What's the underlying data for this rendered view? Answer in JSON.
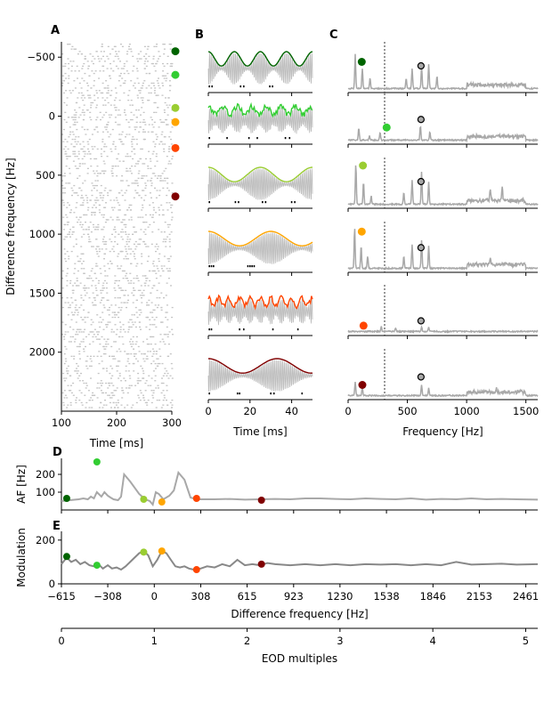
{
  "colors": {
    "series": [
      "#006400",
      "#32cd32",
      "#9acd32",
      "#ffa500",
      "#ff4500",
      "#800000"
    ],
    "grey": "#a8a8a8",
    "dark_grey": "#888888",
    "raster": "#c4c4c4"
  },
  "chart_data": [
    {
      "panel": "A",
      "type": "scatter",
      "title": "",
      "xlabel": "Time [ms]",
      "ylabel": "Difference frequency [Hz]",
      "xlim": [
        100,
        300
      ],
      "ylim": [
        2500,
        -630
      ],
      "x_ticks": [
        100,
        200,
        300
      ],
      "y_ticks": [
        -500,
        0,
        500,
        1000,
        1500,
        2000
      ],
      "y_tick_labels": [
        "−500",
        "0",
        "500",
        "1000",
        "1500",
        "2000"
      ],
      "description_markers": "colored markers at right edge",
      "markers_y": [
        -550,
        -350,
        -70,
        50,
        270,
        680
      ],
      "markers_x": 302
    },
    {
      "panel": "B",
      "type": "line",
      "title": "",
      "xlabel": "Time [ms]",
      "xlim": [
        0,
        50
      ],
      "x_ticks": [
        0,
        20,
        40
      ],
      "rows": 6,
      "envelope_periods_ms": [
        12.5,
        7,
        25,
        30,
        5,
        33
      ],
      "envelope_shapes": [
        "smooth",
        "jagged",
        "smooth",
        "smooth",
        "jagged",
        "smooth"
      ],
      "spike_times_ms": [
        [
          0.5,
          1.8,
          15.5,
          17.0,
          29.5,
          30.8
        ],
        [
          0.5,
          9.0,
          19.5,
          23.5,
          37.0,
          39.0
        ],
        [
          0.5,
          13.0,
          14.5,
          26.0,
          27.5,
          40.0,
          41.5
        ],
        [
          0.5,
          1.5,
          2.5,
          19.0,
          20.0,
          21.0,
          22.0
        ],
        [
          0.5,
          1.5,
          15.0,
          17.0,
          31.0,
          43.0
        ],
        [
          0.5,
          14.0,
          15.0,
          30.0,
          31.5,
          45.0
        ]
      ]
    },
    {
      "panel": "C",
      "type": "line",
      "title": "",
      "xlabel": "Frequency [Hz]",
      "xlim": [
        0,
        1600
      ],
      "x_ticks": [
        0,
        500,
        1000,
        1500
      ],
      "reference_line_x": 308,
      "eod_marker_x": 615,
      "eod_marker_level": [
        0.6,
        0.55,
        0.6,
        0.55,
        0.3,
        0.5
      ],
      "df_marker_x": [
        55,
        265,
        65,
        55,
        70,
        60
      ],
      "df_marker_level": [
        0.7,
        0.35,
        1.0,
        0.95,
        0.18,
        0.3
      ],
      "peaks": [
        [
          [
            60,
            0.85
          ],
          [
            120,
            0.5
          ],
          [
            185,
            0.25
          ],
          [
            490,
            0.25
          ],
          [
            540,
            0.5
          ],
          [
            620,
            0.55
          ],
          [
            680,
            0.6
          ],
          [
            750,
            0.3
          ]
        ],
        [
          [
            90,
            0.3
          ],
          [
            180,
            0.1
          ],
          [
            270,
            0.2
          ],
          [
            610,
            0.35
          ],
          [
            690,
            0.2
          ]
        ],
        [
          [
            65,
            1.0
          ],
          [
            130,
            0.55
          ],
          [
            195,
            0.2
          ],
          [
            470,
            0.3
          ],
          [
            540,
            0.6
          ],
          [
            620,
            0.8
          ],
          [
            680,
            0.55
          ],
          [
            1200,
            0.3
          ],
          [
            1300,
            0.35
          ]
        ],
        [
          [
            55,
            1.0
          ],
          [
            110,
            0.55
          ],
          [
            165,
            0.3
          ],
          [
            470,
            0.3
          ],
          [
            540,
            0.6
          ],
          [
            620,
            0.7
          ],
          [
            680,
            0.55
          ],
          [
            1200,
            0.2
          ]
        ],
        [
          [
            280,
            0.12
          ],
          [
            400,
            0.08
          ],
          [
            620,
            0.12
          ],
          [
            680,
            0.1
          ]
        ],
        [
          [
            60,
            0.35
          ],
          [
            120,
            0.2
          ],
          [
            620,
            0.25
          ],
          [
            680,
            0.18
          ],
          [
            1250,
            0.1
          ]
        ]
      ]
    },
    {
      "panel": "D",
      "type": "line",
      "title": "",
      "ylabel": "AF [Hz]",
      "xlim": [
        -615,
        2540
      ],
      "ylim": [
        0,
        290
      ],
      "y_ticks": [
        100,
        200
      ],
      "x": [
        -615,
        -560,
        -500,
        -470,
        -440,
        -420,
        -400,
        -380,
        -350,
        -330,
        -308,
        -290,
        -270,
        -240,
        -220,
        -200,
        -160,
        -100,
        -60,
        -30,
        -10,
        10,
        30,
        60,
        100,
        130,
        160,
        200,
        240,
        280,
        308,
        400,
        500,
        600,
        700,
        800,
        900,
        1000,
        1100,
        1200,
        1300,
        1400,
        1500,
        1600,
        1700,
        1800,
        1900,
        2000,
        2100,
        2200,
        2300,
        2400,
        2540
      ],
      "y": [
        50,
        55,
        60,
        65,
        60,
        75,
        65,
        100,
        75,
        100,
        80,
        70,
        60,
        55,
        75,
        200,
        160,
        90,
        60,
        50,
        30,
        100,
        90,
        60,
        80,
        110,
        210,
        170,
        70,
        60,
        60,
        60,
        62,
        58,
        60,
        62,
        60,
        65,
        65,
        62,
        60,
        65,
        62,
        60,
        65,
        58,
        62,
        60,
        65,
        60,
        62,
        60,
        58
      ],
      "markers_x": [
        -580,
        -380,
        -70,
        50,
        280,
        710
      ],
      "markers_y": [
        65,
        270,
        60,
        45,
        65,
        55
      ]
    },
    {
      "panel": "E",
      "type": "line",
      "title": "",
      "ylabel": "Modulation",
      "xlabel": "Difference frequency [Hz]",
      "xlim": [
        -615,
        2540
      ],
      "ylim": [
        0,
        240
      ],
      "y_ticks": [
        0,
        200
      ],
      "x_ticks": [
        -615,
        -308,
        0,
        308,
        615,
        923,
        1230,
        1538,
        1846,
        2153,
        2461
      ],
      "x_tick_labels": [
        "−615",
        "−308",
        "0",
        "308",
        "615",
        "923",
        "1230",
        "1538",
        "1846",
        "2153",
        "2461"
      ],
      "x": [
        -615,
        -580,
        -550,
        -520,
        -490,
        -460,
        -430,
        -400,
        -370,
        -340,
        -308,
        -280,
        -250,
        -220,
        -190,
        -160,
        -130,
        -100,
        -70,
        -40,
        -10,
        20,
        50,
        80,
        110,
        140,
        170,
        200,
        230,
        260,
        308,
        350,
        400,
        450,
        500,
        550,
        600,
        650,
        700,
        750,
        800,
        900,
        1000,
        1100,
        1200,
        1300,
        1400,
        1500,
        1600,
        1700,
        1800,
        1900,
        2000,
        2100,
        2200,
        2300,
        2400,
        2540
      ],
      "y": [
        90,
        120,
        100,
        110,
        90,
        100,
        85,
        80,
        90,
        70,
        85,
        70,
        75,
        65,
        80,
        100,
        120,
        140,
        150,
        130,
        80,
        110,
        150,
        140,
        110,
        80,
        75,
        80,
        70,
        65,
        70,
        80,
        75,
        90,
        80,
        110,
        85,
        90,
        85,
        95,
        90,
        85,
        90,
        85,
        90,
        85,
        90,
        88,
        90,
        85,
        90,
        85,
        100,
        88,
        90,
        92,
        88,
        90
      ],
      "markers_x": [
        -580,
        -380,
        -70,
        50,
        280,
        710
      ],
      "markers_y": [
        125,
        85,
        145,
        150,
        65,
        90
      ]
    },
    {
      "panel": "E-secondary",
      "type": "axis",
      "xlabel": "EOD multiples",
      "xlim": [
        0,
        5.13
      ],
      "x_ticks": [
        0,
        1,
        2,
        3,
        4,
        5
      ]
    }
  ],
  "panel_labels": [
    "A",
    "B",
    "C",
    "D",
    "E"
  ]
}
